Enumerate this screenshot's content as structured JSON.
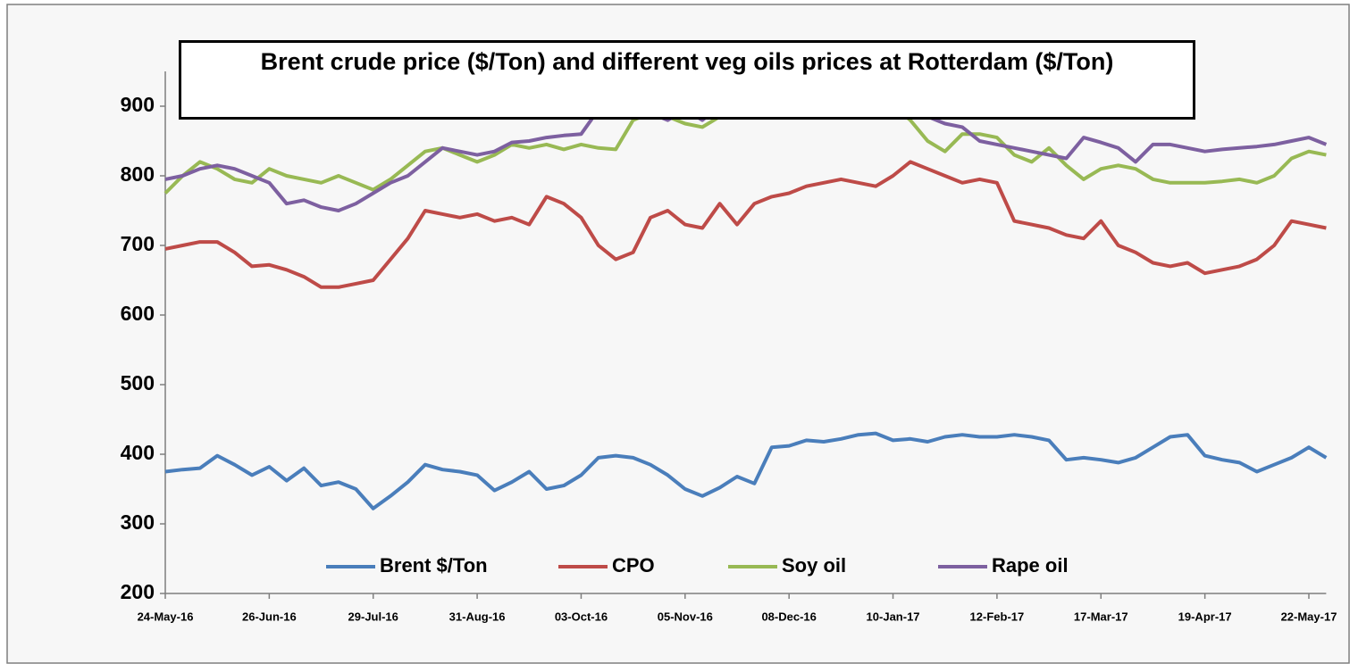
{
  "chart_data": {
    "type": "line",
    "title": "Brent crude price ($/Ton) and different veg oils prices at Rotterdam ($/Ton)",
    "categories": [
      "24-May-16",
      null,
      null,
      null,
      null,
      null,
      "26-Jun-16",
      null,
      null,
      null,
      null,
      null,
      "29-Jul-16",
      null,
      null,
      null,
      null,
      null,
      "31-Aug-16",
      null,
      null,
      null,
      null,
      null,
      "03-Oct-16",
      null,
      null,
      null,
      null,
      null,
      "05-Nov-16",
      null,
      null,
      null,
      null,
      null,
      "08-Dec-16",
      null,
      null,
      null,
      null,
      null,
      "10-Jan-17",
      null,
      null,
      null,
      null,
      null,
      "12-Feb-17",
      null,
      null,
      null,
      null,
      null,
      "17-Mar-17",
      null,
      null,
      null,
      null,
      null,
      "19-Apr-17",
      null,
      null,
      null,
      null,
      null,
      "22-May-17",
      null
    ],
    "series": [
      {
        "name": "Brent $/Ton",
        "color": "#4a7ebb",
        "values": [
          375,
          378,
          380,
          398,
          385,
          370,
          382,
          362,
          380,
          355,
          360,
          350,
          322,
          340,
          360,
          385,
          378,
          375,
          370,
          348,
          360,
          375,
          350,
          355,
          370,
          395,
          398,
          395,
          385,
          370,
          350,
          340,
          352,
          368,
          358,
          410,
          412,
          420,
          418,
          422,
          428,
          430,
          420,
          422,
          418,
          425,
          428,
          425,
          425,
          428,
          425,
          420,
          392,
          395,
          392,
          388,
          395,
          410,
          425,
          428,
          398,
          392,
          388,
          375,
          385,
          395,
          410,
          395
        ]
      },
      {
        "name": "CPO",
        "color": "#be4b48",
        "values": [
          695,
          700,
          705,
          705,
          690,
          670,
          672,
          665,
          655,
          640,
          640,
          645,
          650,
          680,
          710,
          750,
          745,
          740,
          745,
          735,
          740,
          730,
          770,
          760,
          740,
          700,
          680,
          690,
          740,
          750,
          730,
          725,
          760,
          730,
          760,
          770,
          775,
          785,
          790,
          795,
          790,
          785,
          800,
          820,
          810,
          800,
          790,
          795,
          790,
          735,
          730,
          725,
          715,
          710,
          735,
          700,
          690,
          675,
          670,
          675,
          660,
          665,
          670,
          680,
          700,
          735,
          730,
          725
        ]
      },
      {
        "name": "Soy oil",
        "color": "#98b954",
        "values": [
          775,
          800,
          820,
          810,
          795,
          790,
          810,
          800,
          795,
          790,
          800,
          790,
          780,
          795,
          815,
          835,
          840,
          830,
          820,
          830,
          845,
          840,
          845,
          838,
          845,
          840,
          838,
          880,
          890,
          885,
          875,
          870,
          885,
          895,
          905,
          910,
          910,
          905,
          895,
          890,
          885,
          890,
          900,
          880,
          850,
          835,
          860,
          860,
          855,
          830,
          820,
          840,
          815,
          795,
          810,
          815,
          810,
          795,
          790,
          790,
          790,
          792,
          795,
          790,
          800,
          825,
          835,
          830
        ]
      },
      {
        "name": "Rape oil",
        "color": "#7d60a0",
        "values": [
          795,
          800,
          810,
          815,
          810,
          800,
          790,
          760,
          765,
          755,
          750,
          760,
          775,
          790,
          800,
          820,
          840,
          835,
          830,
          835,
          848,
          850,
          855,
          858,
          860,
          895,
          905,
          900,
          890,
          880,
          895,
          880,
          900,
          905,
          910,
          915,
          915,
          910,
          905,
          900,
          905,
          910,
          905,
          890,
          885,
          875,
          870,
          850,
          845,
          840,
          835,
          830,
          825,
          855,
          848,
          840,
          820,
          845,
          845,
          840,
          835,
          838,
          840,
          842,
          845,
          850,
          855,
          845
        ]
      }
    ],
    "ylim": [
      200,
      900
    ],
    "yticks": [
      200,
      300,
      400,
      500,
      600,
      700,
      800,
      900
    ],
    "grid": false,
    "legend": "bottom"
  }
}
